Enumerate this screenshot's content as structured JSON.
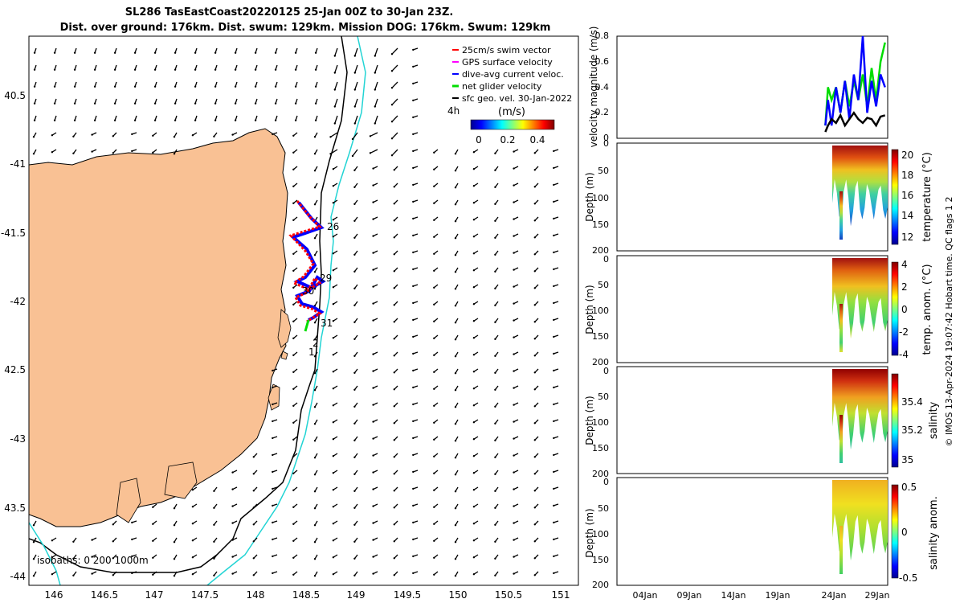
{
  "title": {
    "line1": "SL286 TasEastCoast20220125 25-Jan 00Z to 30-Jan 23Z.",
    "line2": "Dist. over ground: 176km. Dist. swum: 129km. Mission DOG: 176km. Swum: 129km"
  },
  "map": {
    "lon_ticks": [
      "146",
      "146.5",
      "147",
      "147.5",
      "148",
      "148.5",
      "149",
      "149.5",
      "150",
      "150.5",
      "151"
    ],
    "lat_ticks": [
      "40.5",
      "-41",
      "-41.5",
      "-42",
      "42.5",
      "-43",
      "43.5",
      "-44"
    ],
    "legend": [
      {
        "label": "25cm/s swim vector",
        "color": "#ff0000"
      },
      {
        "label": "GPS surface velocity",
        "color": "#ff00ff"
      },
      {
        "label": "dive-avg current veloc.",
        "color": "#0000ff"
      },
      {
        "label": "net glider velocity",
        "color": "#00dd00"
      },
      {
        "label": "sfc geo. vel. 30-Jan-2022",
        "color": "#000000"
      }
    ],
    "colorbar": {
      "unit": "(m/s)",
      "ticks": [
        "0",
        "0.2",
        "0.4"
      ],
      "time_label": "4h"
    },
    "isobaths_label": "isobaths: 0   200  1000m",
    "track_labels": [
      "26",
      "29",
      "30",
      "31",
      "2",
      "1"
    ],
    "land_color": "#f9c194",
    "contour_200_color": "#000000",
    "contour_1000_color": "#22d4d4"
  },
  "chart_data": [
    {
      "type": "line",
      "title": "",
      "ylabel": "velocity magnitude (m/s)",
      "ylim": [
        0,
        0.8
      ],
      "yticks": [
        "0",
        "0.2",
        "0.4",
        "0.6",
        "0.8"
      ],
      "x_days": [
        24.3,
        24.6,
        25.0,
        25.5,
        26.0,
        26.5,
        27.0,
        27.5,
        28.0,
        28.5,
        29.0,
        29.5,
        30.0,
        30.5,
        31.0
      ],
      "series": [
        {
          "name": "net glider velocity",
          "color": "#00dd00",
          "values": [
            0.1,
            0.4,
            0.3,
            0.4,
            0.2,
            0.45,
            0.25,
            0.45,
            0.3,
            0.5,
            0.25,
            0.55,
            0.3,
            0.6,
            0.75
          ]
        },
        {
          "name": "dive-avg current veloc.",
          "color": "#0000ff",
          "values": [
            0.1,
            0.3,
            0.1,
            0.4,
            0.2,
            0.45,
            0.15,
            0.5,
            0.3,
            0.8,
            0.2,
            0.45,
            0.25,
            0.5,
            0.4
          ]
        },
        {
          "name": "sfc geo. vel.",
          "color": "#000000",
          "values": [
            0.05,
            0.1,
            0.15,
            0.12,
            0.18,
            0.1,
            0.15,
            0.2,
            0.15,
            0.12,
            0.16,
            0.15,
            0.1,
            0.17,
            0.18
          ]
        }
      ]
    },
    {
      "type": "heatmap",
      "ylabel": "Depth (m)",
      "cbar_label": "temperature (°C)",
      "ylim": [
        0,
        200
      ],
      "yticks": [
        "0",
        "50",
        "100",
        "150",
        "200"
      ],
      "cbar_ticks": [
        "20",
        "18",
        "16",
        "14",
        "12"
      ],
      "cbar_range": [
        11,
        20.5
      ]
    },
    {
      "type": "heatmap",
      "ylabel": "Depth (m)",
      "cbar_label": "temp. anom. (°C)",
      "ylim": [
        0,
        200
      ],
      "yticks": [
        "0",
        "50",
        "100",
        "150",
        "200"
      ],
      "cbar_ticks": [
        "4",
        "2",
        "0",
        "-2",
        "-4"
      ],
      "cbar_range": [
        -4,
        4
      ]
    },
    {
      "type": "heatmap",
      "ylabel": "Depth (m)",
      "cbar_label": "salinity",
      "ylim": [
        0,
        200
      ],
      "yticks": [
        "0",
        "50",
        "100",
        "150",
        "200"
      ],
      "cbar_ticks": [
        "35.4",
        "35.2",
        "35"
      ],
      "cbar_range": [
        34.92,
        35.58
      ]
    },
    {
      "type": "heatmap",
      "ylabel": "Depth (m)",
      "cbar_label": "salinity anom.",
      "ylim": [
        0,
        200
      ],
      "yticks": [
        "0",
        "50",
        "100",
        "150",
        "200"
      ],
      "cbar_ticks": [
        "0.5",
        "0",
        "-0.5"
      ],
      "cbar_range": [
        -0.5,
        0.5
      ]
    }
  ],
  "time_axis": {
    "ticks": [
      "04Jan",
      "09Jan",
      "14Jan",
      "19Jan",
      "24Jan",
      "29Jan"
    ]
  },
  "footer_note": "© IMOS 13-Apr-2024 19:07:42 Hobart time. QC flags 1  2"
}
